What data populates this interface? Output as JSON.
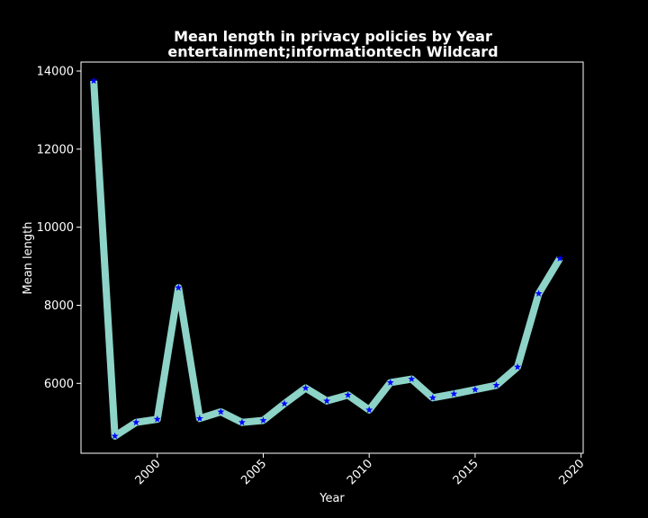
{
  "chart_data": {
    "type": "line",
    "title_line1": "Mean length in privacy policies by Year",
    "title_line2": "entertainment;informationtech Wildcard",
    "xlabel": "Year",
    "ylabel": "Mean length",
    "xlim": [
      1996.4,
      2020.1
    ],
    "ylim": [
      4210,
      14230
    ],
    "x_ticks": [
      2000,
      2005,
      2010,
      2015,
      2020
    ],
    "y_ticks": [
      6000,
      8000,
      10000,
      12000,
      14000
    ],
    "x": [
      1997,
      1998,
      1999,
      2000,
      2001,
      2002,
      2003,
      2004,
      2005,
      2006,
      2007,
      2008,
      2009,
      2010,
      2011,
      2012,
      2013,
      2014,
      2015,
      2016,
      2017,
      2018,
      2019
    ],
    "y": [
      13750,
      4650,
      5000,
      5080,
      8450,
      5100,
      5270,
      5000,
      5050,
      5480,
      5880,
      5550,
      5700,
      5320,
      6020,
      6110,
      5630,
      5730,
      5840,
      5950,
      6420,
      8300,
      9200
    ],
    "grid": false,
    "colors": {
      "background": "#000000",
      "line": "#8dd3c7",
      "marker": "#0000ff",
      "text": "#ffffff"
    },
    "marker": "star"
  }
}
